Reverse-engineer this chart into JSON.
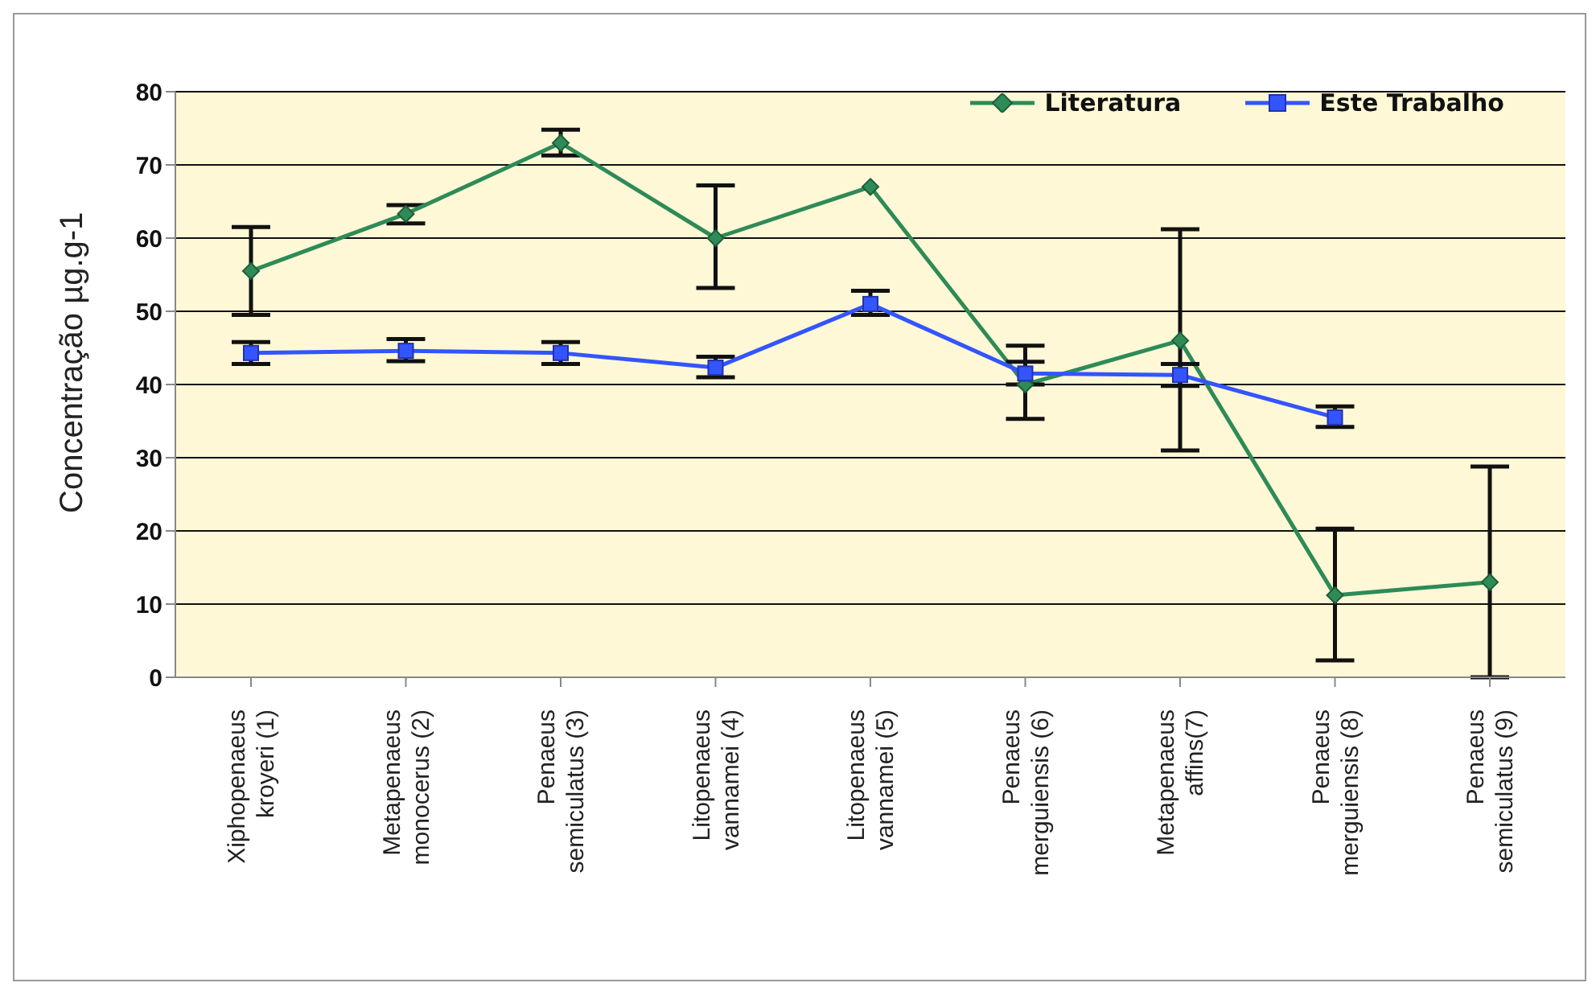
{
  "chart_data": {
    "type": "line",
    "ylabel": "Concentração µg.g-1",
    "categories": [
      "Xiphopenaeus kroyeri (1)",
      "Metapenaeus monocerus (2)",
      "Penaeus semiculatus (3)",
      "Litopenaeus vannamei (4)",
      "Litopenaeus vannamei (5)",
      "Penaeus merguiensis (6)",
      "Metapenaeus affins(7)",
      "Penaeus merguiensis (8)",
      "Penaeus semiculatus (9)"
    ],
    "series": [
      {
        "name": "Literatura",
        "color": "#2e8b57",
        "marker": "diamond",
        "values": [
          55.5,
          63.3,
          73,
          60,
          67,
          40,
          46,
          11.2,
          13
        ],
        "errors": [
          [
            49.5,
            61.5
          ],
          [
            62,
            64.5
          ],
          [
            71.3,
            74.8
          ],
          [
            53.2,
            67.2
          ],
          null,
          [
            35.3,
            45.3
          ],
          [
            31,
            61.2
          ],
          [
            2.3,
            20.3
          ],
          [
            0,
            28.8
          ]
        ]
      },
      {
        "name": "Este Trabalho",
        "color": "#3355ff",
        "marker": "square",
        "values": [
          44.3,
          44.6,
          44.3,
          42.3,
          51,
          41.5,
          41.3,
          35.5,
          null
        ],
        "errors": [
          [
            42.8,
            45.8
          ],
          [
            43.2,
            46.2
          ],
          [
            42.8,
            45.8
          ],
          [
            41,
            43.8
          ],
          [
            49.5,
            52.8
          ],
          [
            40,
            43.1
          ],
          [
            39.8,
            42.8
          ],
          [
            34.2,
            37
          ],
          null
        ]
      }
    ],
    "ylim": [
      0,
      80
    ],
    "yticks": [
      0,
      10,
      20,
      30,
      40,
      50,
      60,
      70,
      80
    ],
    "grid": "y",
    "legend": "top right",
    "line_style": "solid"
  }
}
